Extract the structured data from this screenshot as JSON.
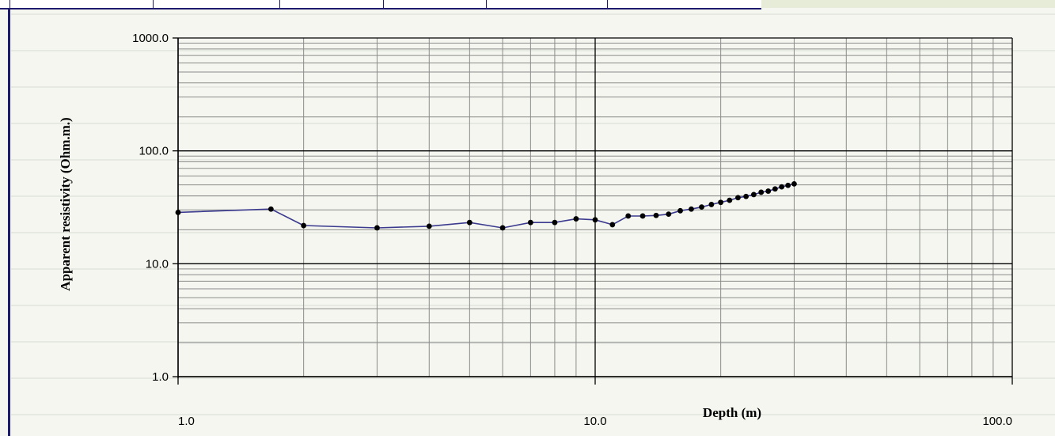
{
  "chart_data": {
    "type": "line",
    "title": "",
    "xlabel": "Depth (m)",
    "ylabel": "Apparent resistivity (Ohm.m.)",
    "x_scale": "log",
    "y_scale": "log",
    "xlim": [
      1.0,
      100.0
    ],
    "ylim": [
      1.0,
      1000.0
    ],
    "x_tick_labels": [
      "1.0",
      "10.0",
      "100.0"
    ],
    "x_tick_values": [
      1,
      10,
      100
    ],
    "y_tick_labels": [
      "1.0",
      "10.0",
      "100.0",
      "1000.0"
    ],
    "y_tick_values": [
      1,
      10,
      100,
      1000
    ],
    "grid": true,
    "series": [
      {
        "color": "#3b3a8f",
        "marker_color": "#000000",
        "x": [
          1.0,
          1.67,
          2.0,
          3.0,
          4.0,
          5.0,
          6.0,
          7.0,
          8.0,
          9.0,
          10.0,
          11.0,
          12.0,
          13.0,
          14.0,
          15.0,
          16.0,
          17.0,
          18.0,
          19.0,
          20.0,
          21.0,
          22.0,
          23.0,
          24.0,
          25.0,
          26.0,
          27.0,
          28.0,
          29.0,
          30.0
        ],
        "y": [
          28.5,
          30.5,
          21.8,
          20.8,
          21.5,
          23.2,
          20.8,
          23.2,
          23.2,
          25.0,
          24.5,
          22.2,
          26.5,
          26.5,
          26.8,
          27.5,
          29.5,
          30.5,
          31.8,
          33.5,
          35.0,
          36.5,
          38.5,
          39.5,
          41.0,
          43.0,
          44.0,
          46.0,
          48.0,
          49.5,
          51.0
        ]
      }
    ]
  }
}
